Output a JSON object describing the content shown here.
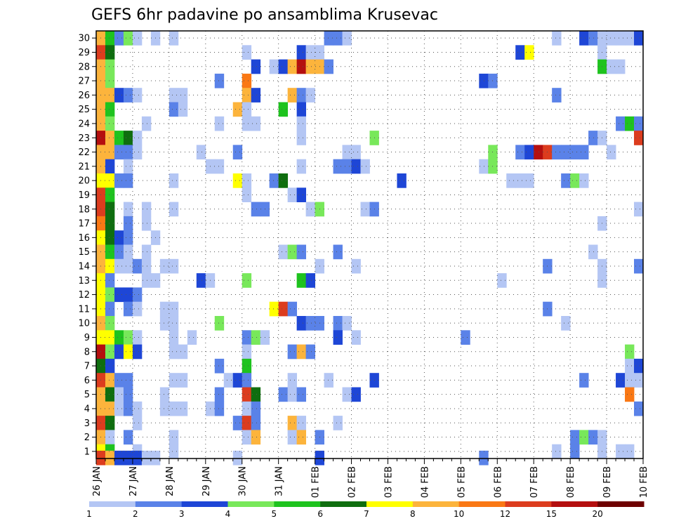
{
  "chart_data": {
    "type": "heatmap",
    "title": "GEFS 6hr padavine po ansamblima Krusevac",
    "xlabel": "",
    "ylabel": "",
    "x_ticks": [
      "26 JAN",
      "27 JAN",
      "28 JAN",
      "29 JAN",
      "30 JAN",
      "31 JAN",
      "01 FEB",
      "02 FEB",
      "03 FEB",
      "04 FEB",
      "05 FEB",
      "06 FEB",
      "07 FEB",
      "08 FEB",
      "09 FEB",
      "10 FEB"
    ],
    "y_ticks": [
      1,
      2,
      3,
      4,
      5,
      6,
      7,
      8,
      9,
      10,
      11,
      12,
      13,
      14,
      15,
      16,
      17,
      18,
      19,
      20,
      21,
      22,
      23,
      24,
      25,
      26,
      27,
      28,
      29,
      30
    ],
    "xlim": [
      0,
      60
    ],
    "ylim": [
      0.5,
      30.5
    ],
    "x_unit_hours": 6,
    "grid": true,
    "colorbar": {
      "placement": "bottom",
      "labels": [
        "1",
        "2",
        "3",
        "4",
        "5",
        "6",
        "7",
        "8",
        "10",
        "12",
        "15",
        "20"
      ],
      "bins": [
        {
          "min": 1,
          "max": 2,
          "color": "#b4c6f4"
        },
        {
          "min": 2,
          "max": 3,
          "color": "#5a82e8"
        },
        {
          "min": 3,
          "max": 4,
          "color": "#1e46d6"
        },
        {
          "min": 4,
          "max": 5,
          "color": "#78e85a"
        },
        {
          "min": 5,
          "max": 6,
          "color": "#1ec31e"
        },
        {
          "min": 6,
          "max": 7,
          "color": "#0f6e0f"
        },
        {
          "min": 7,
          "max": 8,
          "color": "#ffff00"
        },
        {
          "min": 8,
          "max": 10,
          "color": "#fcb43c"
        },
        {
          "min": 10,
          "max": 12,
          "color": "#fa7814"
        },
        {
          "min": 12,
          "max": 15,
          "color": "#dc3c1e"
        },
        {
          "min": 15,
          "max": 20,
          "color": "#b40f0f"
        },
        {
          "min": 20,
          "max": 30,
          "color": "#6e0000"
        }
      ]
    },
    "cells": [
      [
        0,
        30,
        8
      ],
      [
        1,
        30,
        5
      ],
      [
        2,
        30,
        2
      ],
      [
        3,
        30,
        4
      ],
      [
        4,
        30,
        1
      ],
      [
        6,
        30,
        1
      ],
      [
        8,
        30,
        1
      ],
      [
        25,
        30,
        2
      ],
      [
        26,
        30,
        2
      ],
      [
        27,
        30,
        1
      ],
      [
        50,
        30,
        1
      ],
      [
        53,
        30,
        3
      ],
      [
        54,
        30,
        2
      ],
      [
        55,
        30,
        1
      ],
      [
        56,
        30,
        1
      ],
      [
        57,
        30,
        1
      ],
      [
        58,
        30,
        1
      ],
      [
        59,
        30,
        3
      ],
      [
        0,
        29,
        13
      ],
      [
        1,
        29,
        6
      ],
      [
        16,
        29,
        1
      ],
      [
        22,
        29,
        3
      ],
      [
        23,
        29,
        1
      ],
      [
        24,
        29,
        1
      ],
      [
        46,
        29,
        3
      ],
      [
        47,
        29,
        7
      ],
      [
        55,
        29,
        1
      ],
      [
        0,
        28,
        9
      ],
      [
        1,
        28,
        4
      ],
      [
        17,
        28,
        3
      ],
      [
        19,
        28,
        1
      ],
      [
        20,
        28,
        3
      ],
      [
        21,
        28,
        9
      ],
      [
        22,
        28,
        16
      ],
      [
        23,
        28,
        9
      ],
      [
        24,
        28,
        8
      ],
      [
        25,
        28,
        2
      ],
      [
        55,
        28,
        5
      ],
      [
        56,
        28,
        1
      ],
      [
        57,
        28,
        1
      ],
      [
        0,
        27,
        9
      ],
      [
        1,
        27,
        4
      ],
      [
        13,
        27,
        2
      ],
      [
        16,
        27,
        10
      ],
      [
        42,
        27,
        3
      ],
      [
        43,
        27,
        2
      ],
      [
        0,
        26,
        9
      ],
      [
        1,
        26,
        9
      ],
      [
        2,
        26,
        3
      ],
      [
        3,
        26,
        2
      ],
      [
        4,
        26,
        1
      ],
      [
        8,
        26,
        1
      ],
      [
        9,
        26,
        1
      ],
      [
        16,
        26,
        9
      ],
      [
        17,
        26,
        3
      ],
      [
        21,
        26,
        9
      ],
      [
        22,
        26,
        2
      ],
      [
        23,
        26,
        1
      ],
      [
        50,
        26,
        2
      ],
      [
        0,
        25,
        8
      ],
      [
        1,
        25,
        5
      ],
      [
        8,
        25,
        2
      ],
      [
        9,
        25,
        1
      ],
      [
        15,
        25,
        8
      ],
      [
        16,
        25,
        1
      ],
      [
        20,
        25,
        5
      ],
      [
        22,
        25,
        3
      ],
      [
        0,
        24,
        8
      ],
      [
        1,
        24,
        4
      ],
      [
        5,
        24,
        1
      ],
      [
        13,
        24,
        1
      ],
      [
        16,
        24,
        1
      ],
      [
        17,
        24,
        1
      ],
      [
        22,
        24,
        1
      ],
      [
        57,
        24,
        2
      ],
      [
        58,
        24,
        5
      ],
      [
        59,
        24,
        2
      ],
      [
        0,
        23,
        16
      ],
      [
        1,
        23,
        9
      ],
      [
        2,
        23,
        5
      ],
      [
        3,
        23,
        6
      ],
      [
        4,
        23,
        1
      ],
      [
        22,
        23,
        1
      ],
      [
        30,
        23,
        4
      ],
      [
        54,
        23,
        2
      ],
      [
        55,
        23,
        1
      ],
      [
        59,
        23,
        13
      ],
      [
        0,
        22,
        9
      ],
      [
        1,
        22,
        8
      ],
      [
        2,
        22,
        2
      ],
      [
        3,
        22,
        2
      ],
      [
        4,
        22,
        1
      ],
      [
        11,
        22,
        1
      ],
      [
        15,
        22,
        2
      ],
      [
        27,
        22,
        1
      ],
      [
        28,
        22,
        1
      ],
      [
        43,
        22,
        4
      ],
      [
        46,
        22,
        2
      ],
      [
        47,
        22,
        3
      ],
      [
        48,
        22,
        16
      ],
      [
        49,
        22,
        13
      ],
      [
        50,
        22,
        2
      ],
      [
        51,
        22,
        2
      ],
      [
        52,
        22,
        2
      ],
      [
        53,
        22,
        2
      ],
      [
        56,
        22,
        1
      ],
      [
        0,
        21,
        8
      ],
      [
        1,
        21,
        3
      ],
      [
        3,
        21,
        1
      ],
      [
        12,
        21,
        1
      ],
      [
        13,
        21,
        1
      ],
      [
        22,
        21,
        1
      ],
      [
        26,
        21,
        2
      ],
      [
        27,
        21,
        2
      ],
      [
        28,
        21,
        3
      ],
      [
        29,
        21,
        1
      ],
      [
        42,
        21,
        1
      ],
      [
        43,
        21,
        4
      ],
      [
        0,
        20,
        7
      ],
      [
        1,
        20,
        7
      ],
      [
        2,
        20,
        2
      ],
      [
        3,
        20,
        2
      ],
      [
        8,
        20,
        1
      ],
      [
        15,
        20,
        7
      ],
      [
        16,
        20,
        1
      ],
      [
        19,
        20,
        2
      ],
      [
        20,
        20,
        6
      ],
      [
        33,
        20,
        3
      ],
      [
        45,
        20,
        1
      ],
      [
        46,
        20,
        1
      ],
      [
        47,
        20,
        1
      ],
      [
        51,
        20,
        2
      ],
      [
        52,
        20,
        4
      ],
      [
        53,
        20,
        1
      ],
      [
        0,
        19,
        12
      ],
      [
        1,
        19,
        5
      ],
      [
        16,
        19,
        1
      ],
      [
        21,
        19,
        1
      ],
      [
        22,
        19,
        3
      ],
      [
        0,
        18,
        13
      ],
      [
        1,
        18,
        6
      ],
      [
        3,
        18,
        1
      ],
      [
        5,
        18,
        1
      ],
      [
        8,
        18,
        1
      ],
      [
        17,
        18,
        2
      ],
      [
        18,
        18,
        2
      ],
      [
        23,
        18,
        1
      ],
      [
        24,
        18,
        4
      ],
      [
        29,
        18,
        1
      ],
      [
        30,
        18,
        2
      ],
      [
        59,
        18,
        1
      ],
      [
        0,
        17,
        11
      ],
      [
        1,
        17,
        6
      ],
      [
        3,
        17,
        2
      ],
      [
        5,
        17,
        1
      ],
      [
        55,
        17,
        1
      ],
      [
        0,
        16,
        7
      ],
      [
        1,
        16,
        6
      ],
      [
        2,
        16,
        3
      ],
      [
        3,
        16,
        2
      ],
      [
        6,
        16,
        1
      ],
      [
        0,
        15,
        8
      ],
      [
        1,
        15,
        5
      ],
      [
        2,
        15,
        2
      ],
      [
        3,
        15,
        1
      ],
      [
        5,
        15,
        1
      ],
      [
        20,
        15,
        1
      ],
      [
        21,
        15,
        4
      ],
      [
        22,
        15,
        2
      ],
      [
        26,
        15,
        2
      ],
      [
        54,
        15,
        1
      ],
      [
        0,
        14,
        9
      ],
      [
        1,
        14,
        7
      ],
      [
        2,
        14,
        1
      ],
      [
        3,
        14,
        1
      ],
      [
        4,
        14,
        2
      ],
      [
        5,
        14,
        1
      ],
      [
        7,
        14,
        1
      ],
      [
        8,
        14,
        1
      ],
      [
        24,
        14,
        1
      ],
      [
        28,
        14,
        1
      ],
      [
        49,
        14,
        2
      ],
      [
        55,
        14,
        1
      ],
      [
        59,
        14,
        2
      ],
      [
        0,
        13,
        7
      ],
      [
        1,
        13,
        2
      ],
      [
        5,
        13,
        1
      ],
      [
        6,
        13,
        1
      ],
      [
        11,
        13,
        3
      ],
      [
        12,
        13,
        1
      ],
      [
        16,
        13,
        4
      ],
      [
        22,
        13,
        5
      ],
      [
        23,
        13,
        3
      ],
      [
        44,
        13,
        1
      ],
      [
        55,
        13,
        1
      ],
      [
        0,
        12,
        7
      ],
      [
        1,
        12,
        4
      ],
      [
        2,
        12,
        3
      ],
      [
        3,
        12,
        3
      ],
      [
        4,
        12,
        2
      ],
      [
        0,
        11,
        7
      ],
      [
        1,
        11,
        2
      ],
      [
        3,
        11,
        2
      ],
      [
        4,
        11,
        1
      ],
      [
        7,
        11,
        1
      ],
      [
        8,
        11,
        1
      ],
      [
        19,
        11,
        7
      ],
      [
        20,
        11,
        13
      ],
      [
        21,
        11,
        2
      ],
      [
        49,
        11,
        2
      ],
      [
        0,
        10,
        8
      ],
      [
        1,
        10,
        4
      ],
      [
        7,
        10,
        1
      ],
      [
        8,
        10,
        1
      ],
      [
        13,
        10,
        4
      ],
      [
        22,
        10,
        3
      ],
      [
        23,
        10,
        2
      ],
      [
        24,
        10,
        2
      ],
      [
        26,
        10,
        2
      ],
      [
        27,
        10,
        1
      ],
      [
        51,
        10,
        1
      ],
      [
        0,
        9,
        7
      ],
      [
        1,
        9,
        7
      ],
      [
        2,
        9,
        5
      ],
      [
        3,
        9,
        4
      ],
      [
        4,
        9,
        1
      ],
      [
        8,
        9,
        1
      ],
      [
        10,
        9,
        1
      ],
      [
        16,
        9,
        2
      ],
      [
        17,
        9,
        4
      ],
      [
        18,
        9,
        1
      ],
      [
        26,
        9,
        3
      ],
      [
        28,
        9,
        1
      ],
      [
        40,
        9,
        2
      ],
      [
        0,
        8,
        16
      ],
      [
        1,
        8,
        4
      ],
      [
        2,
        8,
        3
      ],
      [
        3,
        8,
        7
      ],
      [
        4,
        8,
        3
      ],
      [
        8,
        8,
        1
      ],
      [
        9,
        8,
        1
      ],
      [
        16,
        8,
        1
      ],
      [
        21,
        8,
        2
      ],
      [
        22,
        8,
        9
      ],
      [
        23,
        8,
        2
      ],
      [
        58,
        8,
        4
      ],
      [
        0,
        7,
        6
      ],
      [
        1,
        7,
        3
      ],
      [
        13,
        7,
        2
      ],
      [
        16,
        7,
        5
      ],
      [
        58,
        7,
        1
      ],
      [
        59,
        7,
        3
      ],
      [
        0,
        6,
        13
      ],
      [
        1,
        6,
        9
      ],
      [
        2,
        6,
        2
      ],
      [
        3,
        6,
        2
      ],
      [
        8,
        6,
        1
      ],
      [
        9,
        6,
        1
      ],
      [
        14,
        6,
        1
      ],
      [
        15,
        6,
        3
      ],
      [
        16,
        6,
        2
      ],
      [
        21,
        6,
        1
      ],
      [
        25,
        6,
        1
      ],
      [
        30,
        6,
        3
      ],
      [
        53,
        6,
        2
      ],
      [
        57,
        6,
        3
      ],
      [
        58,
        6,
        1
      ],
      [
        59,
        6,
        1
      ],
      [
        0,
        5,
        9
      ],
      [
        1,
        5,
        6
      ],
      [
        2,
        5,
        1
      ],
      [
        3,
        5,
        2
      ],
      [
        7,
        5,
        1
      ],
      [
        13,
        5,
        2
      ],
      [
        16,
        5,
        13
      ],
      [
        17,
        5,
        6
      ],
      [
        20,
        5,
        2
      ],
      [
        21,
        5,
        1
      ],
      [
        22,
        5,
        2
      ],
      [
        27,
        5,
        1
      ],
      [
        28,
        5,
        3
      ],
      [
        58,
        5,
        10
      ],
      [
        0,
        4,
        9
      ],
      [
        1,
        4,
        8
      ],
      [
        2,
        4,
        1
      ],
      [
        3,
        4,
        2
      ],
      [
        4,
        4,
        1
      ],
      [
        7,
        4,
        1
      ],
      [
        8,
        4,
        1
      ],
      [
        9,
        4,
        1
      ],
      [
        12,
        4,
        1
      ],
      [
        13,
        4,
        2
      ],
      [
        16,
        4,
        1
      ],
      [
        17,
        4,
        2
      ],
      [
        59,
        4,
        2
      ],
      [
        0,
        3,
        13
      ],
      [
        1,
        3,
        6
      ],
      [
        4,
        3,
        1
      ],
      [
        15,
        3,
        2
      ],
      [
        16,
        3,
        13
      ],
      [
        17,
        3,
        2
      ],
      [
        21,
        3,
        9
      ],
      [
        22,
        3,
        1
      ],
      [
        26,
        3,
        1
      ],
      [
        0,
        2,
        8
      ],
      [
        1,
        2,
        1
      ],
      [
        3,
        2,
        2
      ],
      [
        8,
        2,
        1
      ],
      [
        16,
        2,
        1
      ],
      [
        17,
        2,
        8
      ],
      [
        21,
        2,
        1
      ],
      [
        22,
        2,
        9
      ],
      [
        24,
        2,
        2
      ],
      [
        52,
        2,
        2
      ],
      [
        53,
        2,
        4
      ],
      [
        54,
        2,
        2
      ],
      [
        55,
        2,
        1
      ],
      [
        0,
        1,
        7
      ],
      [
        1,
        1,
        5
      ],
      [
        4,
        1,
        1
      ],
      [
        8,
        1,
        1
      ],
      [
        50,
        1,
        1
      ],
      [
        52,
        1,
        2
      ],
      [
        55,
        1,
        1
      ],
      [
        57,
        1,
        1
      ],
      [
        58,
        1,
        1
      ],
      [
        0,
        0.55,
        13
      ],
      [
        1,
        0.55,
        9
      ],
      [
        2,
        0.55,
        3
      ],
      [
        3,
        0.55,
        3
      ],
      [
        4,
        0.55,
        3
      ],
      [
        5,
        0.55,
        1
      ],
      [
        6,
        0.55,
        1
      ],
      [
        15,
        0.55,
        1
      ],
      [
        24,
        0.55,
        3
      ],
      [
        42,
        0.55,
        2
      ]
    ]
  }
}
